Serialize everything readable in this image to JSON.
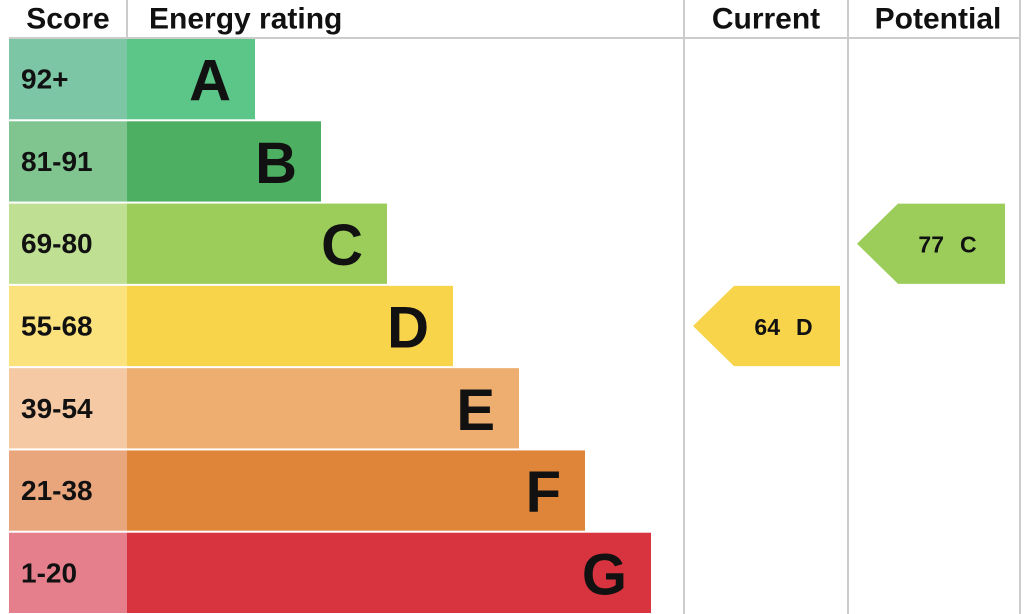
{
  "chart_data": {
    "type": "epc",
    "headers": [
      "Score",
      "Energy rating",
      "Current",
      "Potential"
    ],
    "bands": [
      {
        "score": "92+",
        "rating": "A",
        "color": "#5cc689",
        "score_color": "#7cc6a6"
      },
      {
        "score": "81-91",
        "rating": "B",
        "color": "#4caf62",
        "score_color": "#80c58f"
      },
      {
        "score": "69-80",
        "rating": "C",
        "color": "#9ccd5a",
        "score_color": "#bfdf93"
      },
      {
        "score": "55-68",
        "rating": "D",
        "color": "#f7d44a",
        "score_color": "#fbe27c"
      },
      {
        "score": "39-54",
        "rating": "E",
        "color": "#eeae70",
        "score_color": "#f4c9a4"
      },
      {
        "score": "21-38",
        "rating": "F",
        "color": "#df853a",
        "score_color": "#e9a57c"
      },
      {
        "score": "1-20",
        "rating": "G",
        "color": "#d7343f",
        "score_color": "#e57f8c"
      }
    ],
    "current": {
      "value": 64,
      "rating": "D"
    },
    "potential": {
      "value": 77,
      "rating": "C"
    }
  }
}
